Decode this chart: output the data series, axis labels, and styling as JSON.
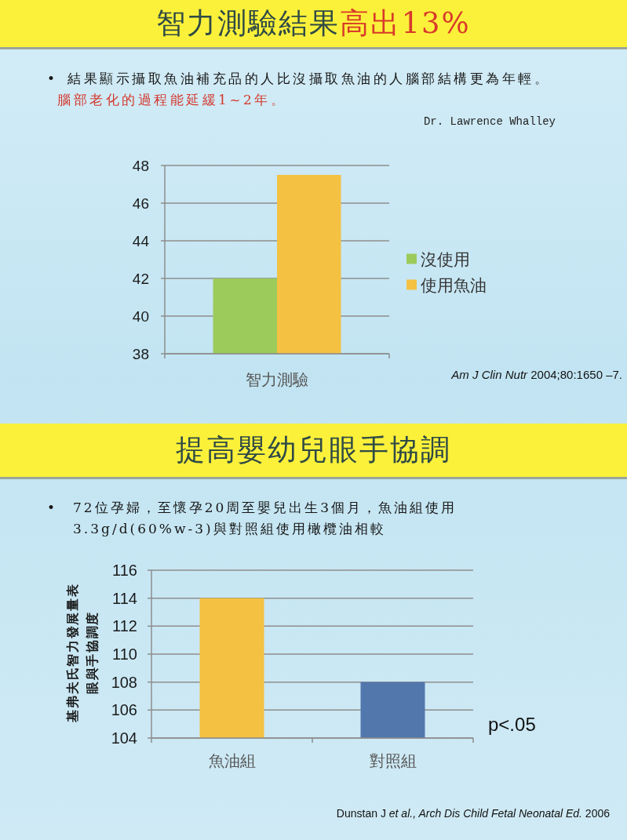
{
  "chart_data": [
    {
      "type": "bar",
      "title": "智力測驗結果**高出13%**",
      "subtitle": "•\t結果顯示攝取魚油補充品的人比沒攝取魚油的人腦部結構更為年輕。",
      "annotations": [
        "腦部老化的過程能延緩1~2年。",
        "Dr. Lawrence Whalley",
        "*Am J Clin Nutr* 2004;80:1650 –7."
      ],
      "categories": [
        "智力測驗"
      ],
      "series": [
        {
          "name": "沒使用",
          "color": "#9ccb5c",
          "values": [
            42
          ]
        },
        {
          "name": "使用魚油",
          "color": "#f4c142",
          "values": [
            47.5
          ]
        }
      ],
      "ylim": [
        38,
        48
      ],
      "yticks": [
        38,
        40,
        42,
        44,
        46,
        48
      ],
      "grid": "y",
      "legend": "right"
    },
    {
      "type": "bar",
      "title": "提高嬰幼兒眼手協調",
      "subtitle": "•\t72位孕婦，至懷孕20周至嬰兒出生3個月，魚油組使用3.3g/d(60%w-3)與對照組使用橄欖油相較",
      "ylabel": "基弗夫氏智力發展量表眼與手協調度",
      "annotations": [
        "p<.05",
        "Dunstan J *et al., Arch Dis Child Fetal Neonatal Ed.* 2006"
      ],
      "categories": [
        "魚油組",
        "對照組"
      ],
      "values": [
        114,
        108
      ],
      "colors": [
        "#f4c142",
        "#5277ad"
      ],
      "ylim": [
        104,
        116
      ],
      "yticks": [
        104,
        106,
        108,
        110,
        112,
        114,
        116
      ],
      "grid": "y"
    }
  ]
}
